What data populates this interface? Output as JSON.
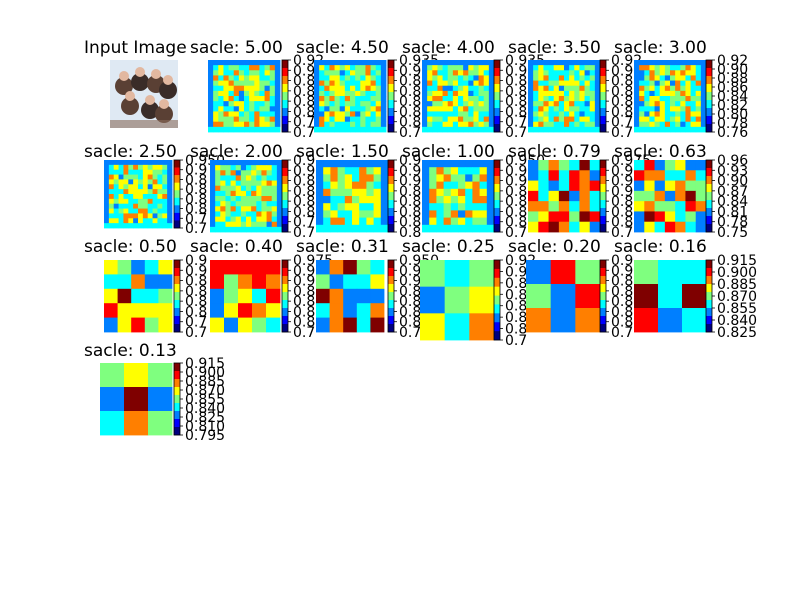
{
  "colors": {
    "jet": [
      "#00007f",
      "#0000ff",
      "#007fff",
      "#00ffff",
      "#7fff7f",
      "#ffff00",
      "#ff7f00",
      "#ff0000",
      "#7f0000"
    ],
    "input_photo_bg": "#dfe9f3"
  },
  "panels": [
    {
      "title": "Input Image",
      "kind": "photo",
      "ticks": []
    },
    {
      "title": "sacle: 5.00",
      "kind": "map",
      "mode": "fine",
      "ticks": [
        "0.92",
        "0.9",
        "0.8",
        "0.8",
        "0.8",
        "0.8",
        "0.7",
        "0.7"
      ]
    },
    {
      "title": "sacle: 4.50",
      "kind": "map",
      "mode": "fine",
      "ticks": [
        "0.935",
        "0.9",
        "0.8",
        "0.8",
        "0.8",
        "0.8",
        "0.8",
        "0.7"
      ]
    },
    {
      "title": "sacle: 4.00",
      "kind": "map",
      "mode": "fine",
      "ticks": [
        "0.935",
        "0.9",
        "0.8",
        "0.8",
        "0.8",
        "0.8",
        "0.7",
        "0.7"
      ]
    },
    {
      "title": "sacle: 3.50",
      "kind": "map",
      "mode": "fine",
      "ticks": [
        "0.92",
        "0.9",
        "0.8",
        "0.8",
        "0.8",
        "0.8",
        "0.7",
        "0.7"
      ]
    },
    {
      "title": "sacle: 3.00",
      "kind": "map",
      "mode": "fine",
      "ticks": [
        "0.92",
        "0.90",
        "0.88",
        "0.86",
        "0.84",
        "0.82",
        "0.80",
        "0.78",
        "0.76"
      ]
    },
    {
      "title": "sacle: 2.50",
      "kind": "map",
      "mode": "fine",
      "ticks": [
        "0.950",
        "0.9",
        "0.8",
        "0.8",
        "0.8",
        "0.8",
        "0.7",
        "0.7"
      ]
    },
    {
      "title": "sacle: 2.00",
      "kind": "map",
      "mode": "fine",
      "ticks": [
        "0.9",
        "0.9",
        "0.8",
        "0.8",
        "0.8",
        "0.8",
        "0.7",
        "0.7"
      ]
    },
    {
      "title": "sacle: 1.50",
      "kind": "map",
      "mode": "medium",
      "ticks": [
        "0.9",
        "0.9",
        "0.9",
        "0.8",
        "0.8",
        "0.8",
        "0.8",
        "0.8"
      ]
    },
    {
      "title": "sacle: 1.00",
      "kind": "map",
      "mode": "medium",
      "ticks": [
        "0.950",
        "0.9",
        "0.9",
        "0.8",
        "0.8",
        "0.8",
        "0.8",
        "0.7"
      ]
    },
    {
      "title": "sacle: 0.79",
      "kind": "map",
      "mode": "coarse",
      "ticks": [
        "0.975",
        "0.9",
        "0.9",
        "0.9",
        "0.8",
        "0.8",
        "0.8",
        "0.7"
      ]
    },
    {
      "title": "sacle: 0.63",
      "kind": "map",
      "mode": "coarse",
      "ticks": [
        "0.96",
        "0.93",
        "0.90",
        "0.87",
        "0.84",
        "0.81",
        "0.78",
        "0.75"
      ]
    },
    {
      "title": "sacle: 0.50",
      "kind": "map",
      "mode": "block",
      "ticks": [
        "0.9",
        "0.9",
        "0.8",
        "0.8",
        "0.8",
        "0.8",
        "0.7",
        "0.7"
      ]
    },
    {
      "title": "sacle: 0.40",
      "kind": "map",
      "mode": "block",
      "ticks": [
        "0.975",
        "0.9",
        "0.9",
        "0.8",
        "0.8",
        "0.8",
        "0.8",
        "0.7"
      ]
    },
    {
      "title": "sacle: 0.31",
      "kind": "map",
      "mode": "block",
      "ticks": [
        "0.950",
        "0.9",
        "0.9",
        "0.8",
        "0.8",
        "0.8",
        "0.8",
        "0.775"
      ]
    },
    {
      "title": "sacle: 0.25",
      "kind": "map",
      "mode": "blob",
      "ticks": [
        "0.92",
        "0.9",
        "0.8",
        "0.8",
        "0.8",
        "0.8",
        "0.8",
        "0.7"
      ]
    },
    {
      "title": "sacle: 0.20",
      "kind": "map",
      "mode": "blob",
      "ticks": [
        "0.9",
        "0.9",
        "0.8",
        "0.8",
        "0.8",
        "0.8",
        "0.8",
        "0.7"
      ]
    },
    {
      "title": "sacle: 0.16",
      "kind": "map",
      "mode": "blob",
      "ticks": [
        "0.915",
        "0.900",
        "0.885",
        "0.870",
        "0.855",
        "0.840",
        "0.825"
      ]
    },
    {
      "title": "sacle: 0.13",
      "kind": "map",
      "mode": "blob",
      "ticks": [
        "0.915",
        "0.900",
        "0.885",
        "0.870",
        "0.855",
        "0.840",
        "0.825",
        "0.810",
        "0.795"
      ]
    }
  ]
}
